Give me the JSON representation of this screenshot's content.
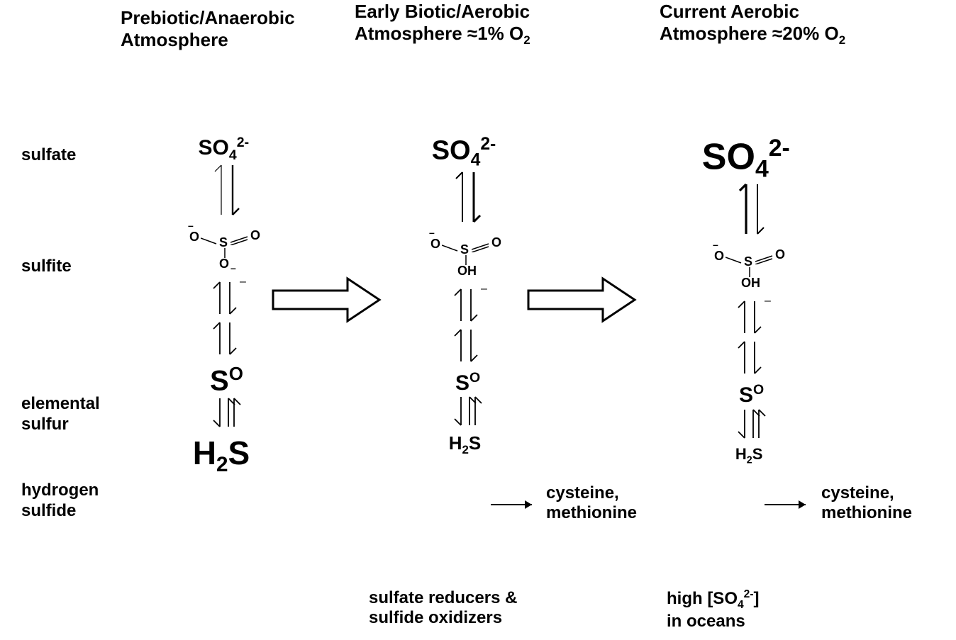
{
  "colors": {
    "text": "#000000",
    "bg": "#ffffff"
  },
  "headers": {
    "col1": {
      "line1": "Prebiotic/Anaerobic",
      "line2": "Atmosphere"
    },
    "col2": {
      "line1": "Early Biotic/Aerobic",
      "line2_prefix": "Atmosphere ≈1% O",
      "line2_sub": "2"
    },
    "col3": {
      "line1": "Current Aerobic",
      "line2_prefix": "Atmosphere ≈20% O",
      "line2_sub": "2"
    }
  },
  "rowLabels": {
    "sulfate": "sulfate",
    "sulfite": "sulfite",
    "elemental": {
      "line1": "elemental",
      "line2": "sulfur"
    },
    "hydrogen": {
      "line1": "hydrogen",
      "line2": "sulfide"
    }
  },
  "species": {
    "so4_base": "SO",
    "so4_sub": "4",
    "so4_sup": "2-",
    "S": "S",
    "S_sup": "O",
    "H": "H",
    "H_sub": "2",
    "H_suffix": "S",
    "sulfite": {
      "O_left": "O",
      "S": "S",
      "O_right": "O",
      "O_bottom1": "O",
      "OH_bottom": "OH"
    }
  },
  "products": {
    "cys": "cysteine,",
    "met": "methionine"
  },
  "captions": {
    "col2": {
      "line1": "sulfate reducers &",
      "line2": "sulfide oxidizers"
    },
    "col3": {
      "line1_prefix": "high [SO",
      "line1_sub": "4",
      "line1_sup": "2-",
      "line1_suffix": "]",
      "line2": "in oceans"
    }
  },
  "layout": {
    "colX": {
      "labels": 30,
      "c1": 245,
      "c2": 600,
      "c3": 990
    },
    "rowY": {
      "sulfate": 215,
      "sulfite": 370,
      "elemental": 560,
      "hydrogen": 700
    },
    "fontSizes": {
      "so4": {
        "c1": 30,
        "c2": 38,
        "c3": 52
      },
      "S": {
        "c1": 40,
        "c2": 30,
        "c3": 30
      },
      "H2S": {
        "c1": 46,
        "c2": 26,
        "c3": 22
      }
    },
    "arrows": {
      "so4_sulfite": {
        "len": 70,
        "w_up": {
          "c1": 1.2,
          "c2": 2,
          "c3": 3.2
        },
        "w_dn": {
          "c1": 2.4,
          "c2": 3,
          "c3": 2
        }
      },
      "sulfite_S": {
        "len": 45,
        "double": true
      },
      "S_H2S": {
        "len": 40
      }
    }
  }
}
